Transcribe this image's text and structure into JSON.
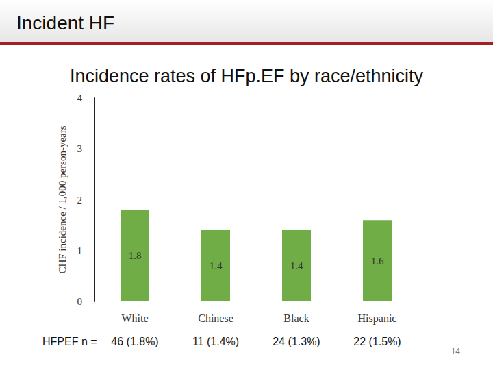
{
  "slide": {
    "header": "Incident HF",
    "page": 14
  },
  "chart_data": {
    "type": "bar",
    "title": "Incidence rates of HFp.EF by race/ethnicity",
    "y_label": "CHF incidence / 1,000 person-years",
    "categories": [
      "White",
      "Chinese",
      "Black",
      "Hispanic"
    ],
    "values": [
      1.8,
      1.4,
      1.4,
      1.6
    ],
    "color": "#70ad47",
    "ylim": [
      0,
      4
    ],
    "yticks": [
      0,
      1,
      2,
      3,
      4
    ],
    "grid": false,
    "data_labels": true
  },
  "table": {
    "label": "HFPEF n =",
    "cells": [
      "46 (1.8%)",
      "11 (1.4%)",
      "24 (1.3%)",
      "22 (1.5%)"
    ]
  }
}
